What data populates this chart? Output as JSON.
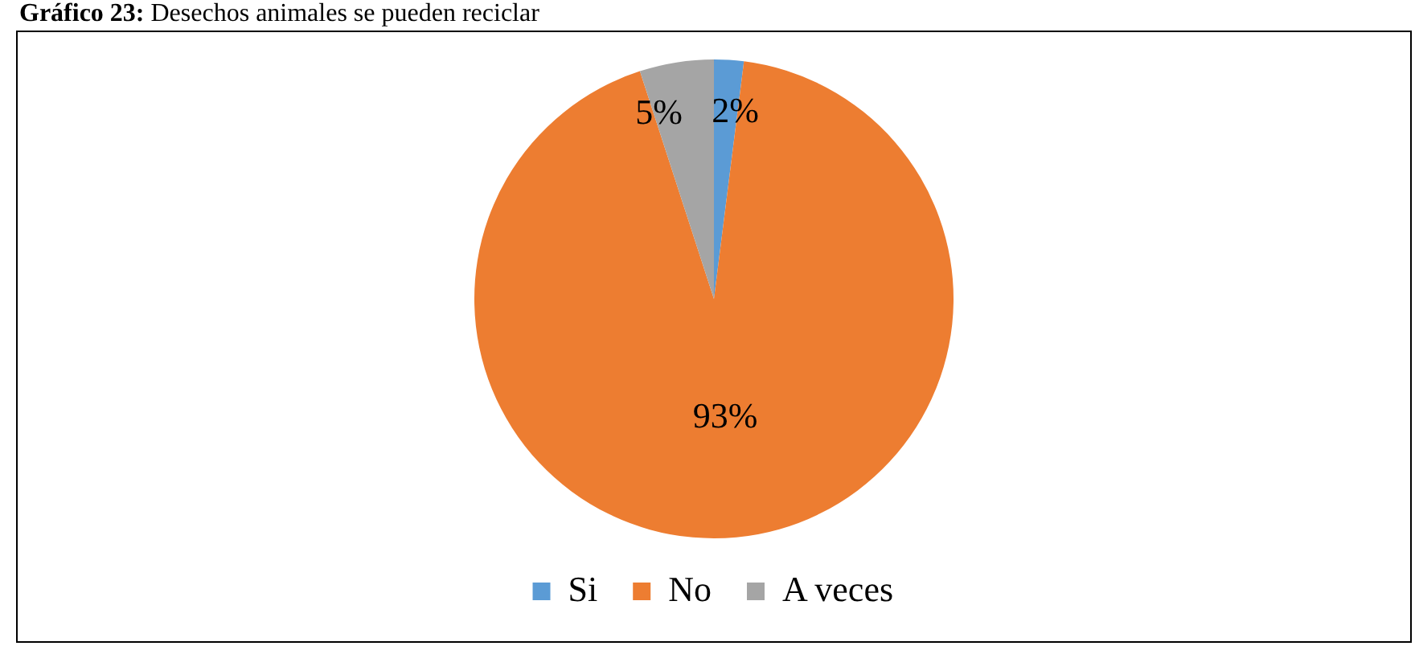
{
  "chart_data": {
    "type": "pie",
    "title": "Gráfico 23: Desechos animales se pueden reciclar",
    "categories": [
      "Si",
      "No",
      "A veces"
    ],
    "values": [
      2,
      93,
      5
    ],
    "colors": [
      "#5b9bd5",
      "#ed7d31",
      "#a5a5a5"
    ],
    "value_labels": [
      "2%",
      "93%",
      "5%"
    ],
    "legend": "bottom"
  }
}
